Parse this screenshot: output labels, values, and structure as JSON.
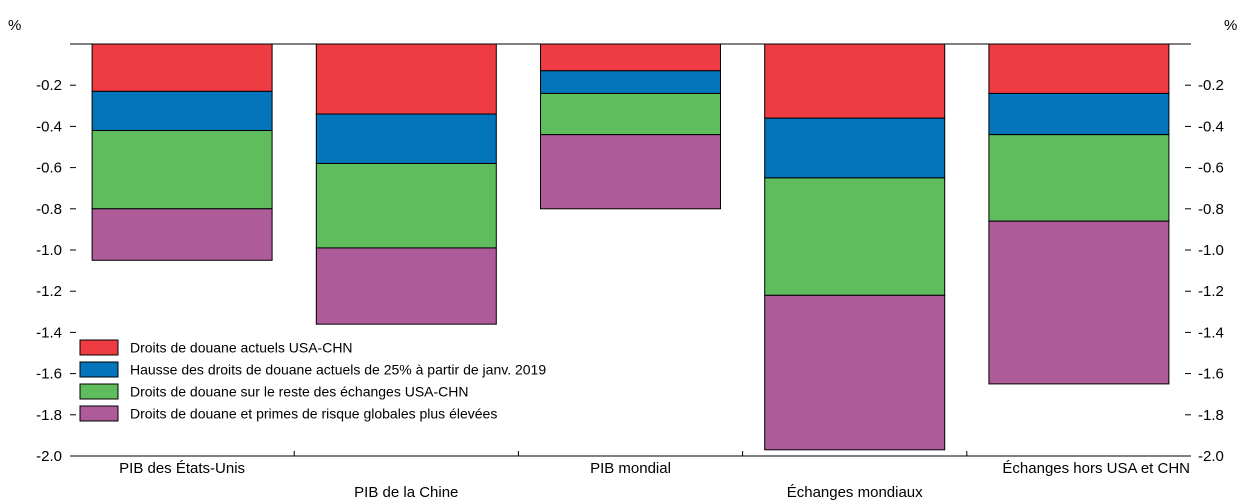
{
  "chart_data": {
    "type": "bar",
    "stacked": true,
    "y_unit_left": "%",
    "y_unit_right": "%",
    "categories": [
      "PIB des États-Unis",
      "PIB de la Chine",
      "PIB mondial",
      "Échanges mondiaux",
      "Échanges hors USA et CHN"
    ],
    "series": [
      {
        "name": "Droits de douane actuels USA-CHN",
        "color": "#ef3b42",
        "values": [
          -0.23,
          -0.34,
          -0.13,
          -0.36,
          -0.24
        ]
      },
      {
        "name": "Hausse des droits de douane actuels de 25% à partir de janv. 2019",
        "color": "#0474bb",
        "values": [
          -0.19,
          -0.24,
          -0.11,
          -0.29,
          -0.2
        ]
      },
      {
        "name": "Droits de douane sur le reste des échanges USA-CHN",
        "color": "#5fbd5e",
        "values": [
          -0.38,
          -0.41,
          -0.2,
          -0.57,
          -0.42
        ]
      },
      {
        "name": "Droits de douane et primes de risque globales plus élevées",
        "color": "#ad5b99",
        "values": [
          -0.25,
          -0.37,
          -0.36,
          -0.75,
          -0.79
        ]
      }
    ],
    "ylim": [
      -2.0,
      0.0
    ],
    "yticks": [
      "-0.2",
      "-0.4",
      "-0.6",
      "-0.8",
      "-1.0",
      "-1.2",
      "-1.4",
      "-1.6",
      "-1.8",
      "-2.0"
    ],
    "ytick_values": [
      -0.2,
      -0.4,
      -0.6,
      -0.8,
      -1.0,
      -1.2,
      -1.4,
      -1.6,
      -1.8,
      -2.0
    ],
    "legend_position": "bottom-left",
    "grid": false
  }
}
